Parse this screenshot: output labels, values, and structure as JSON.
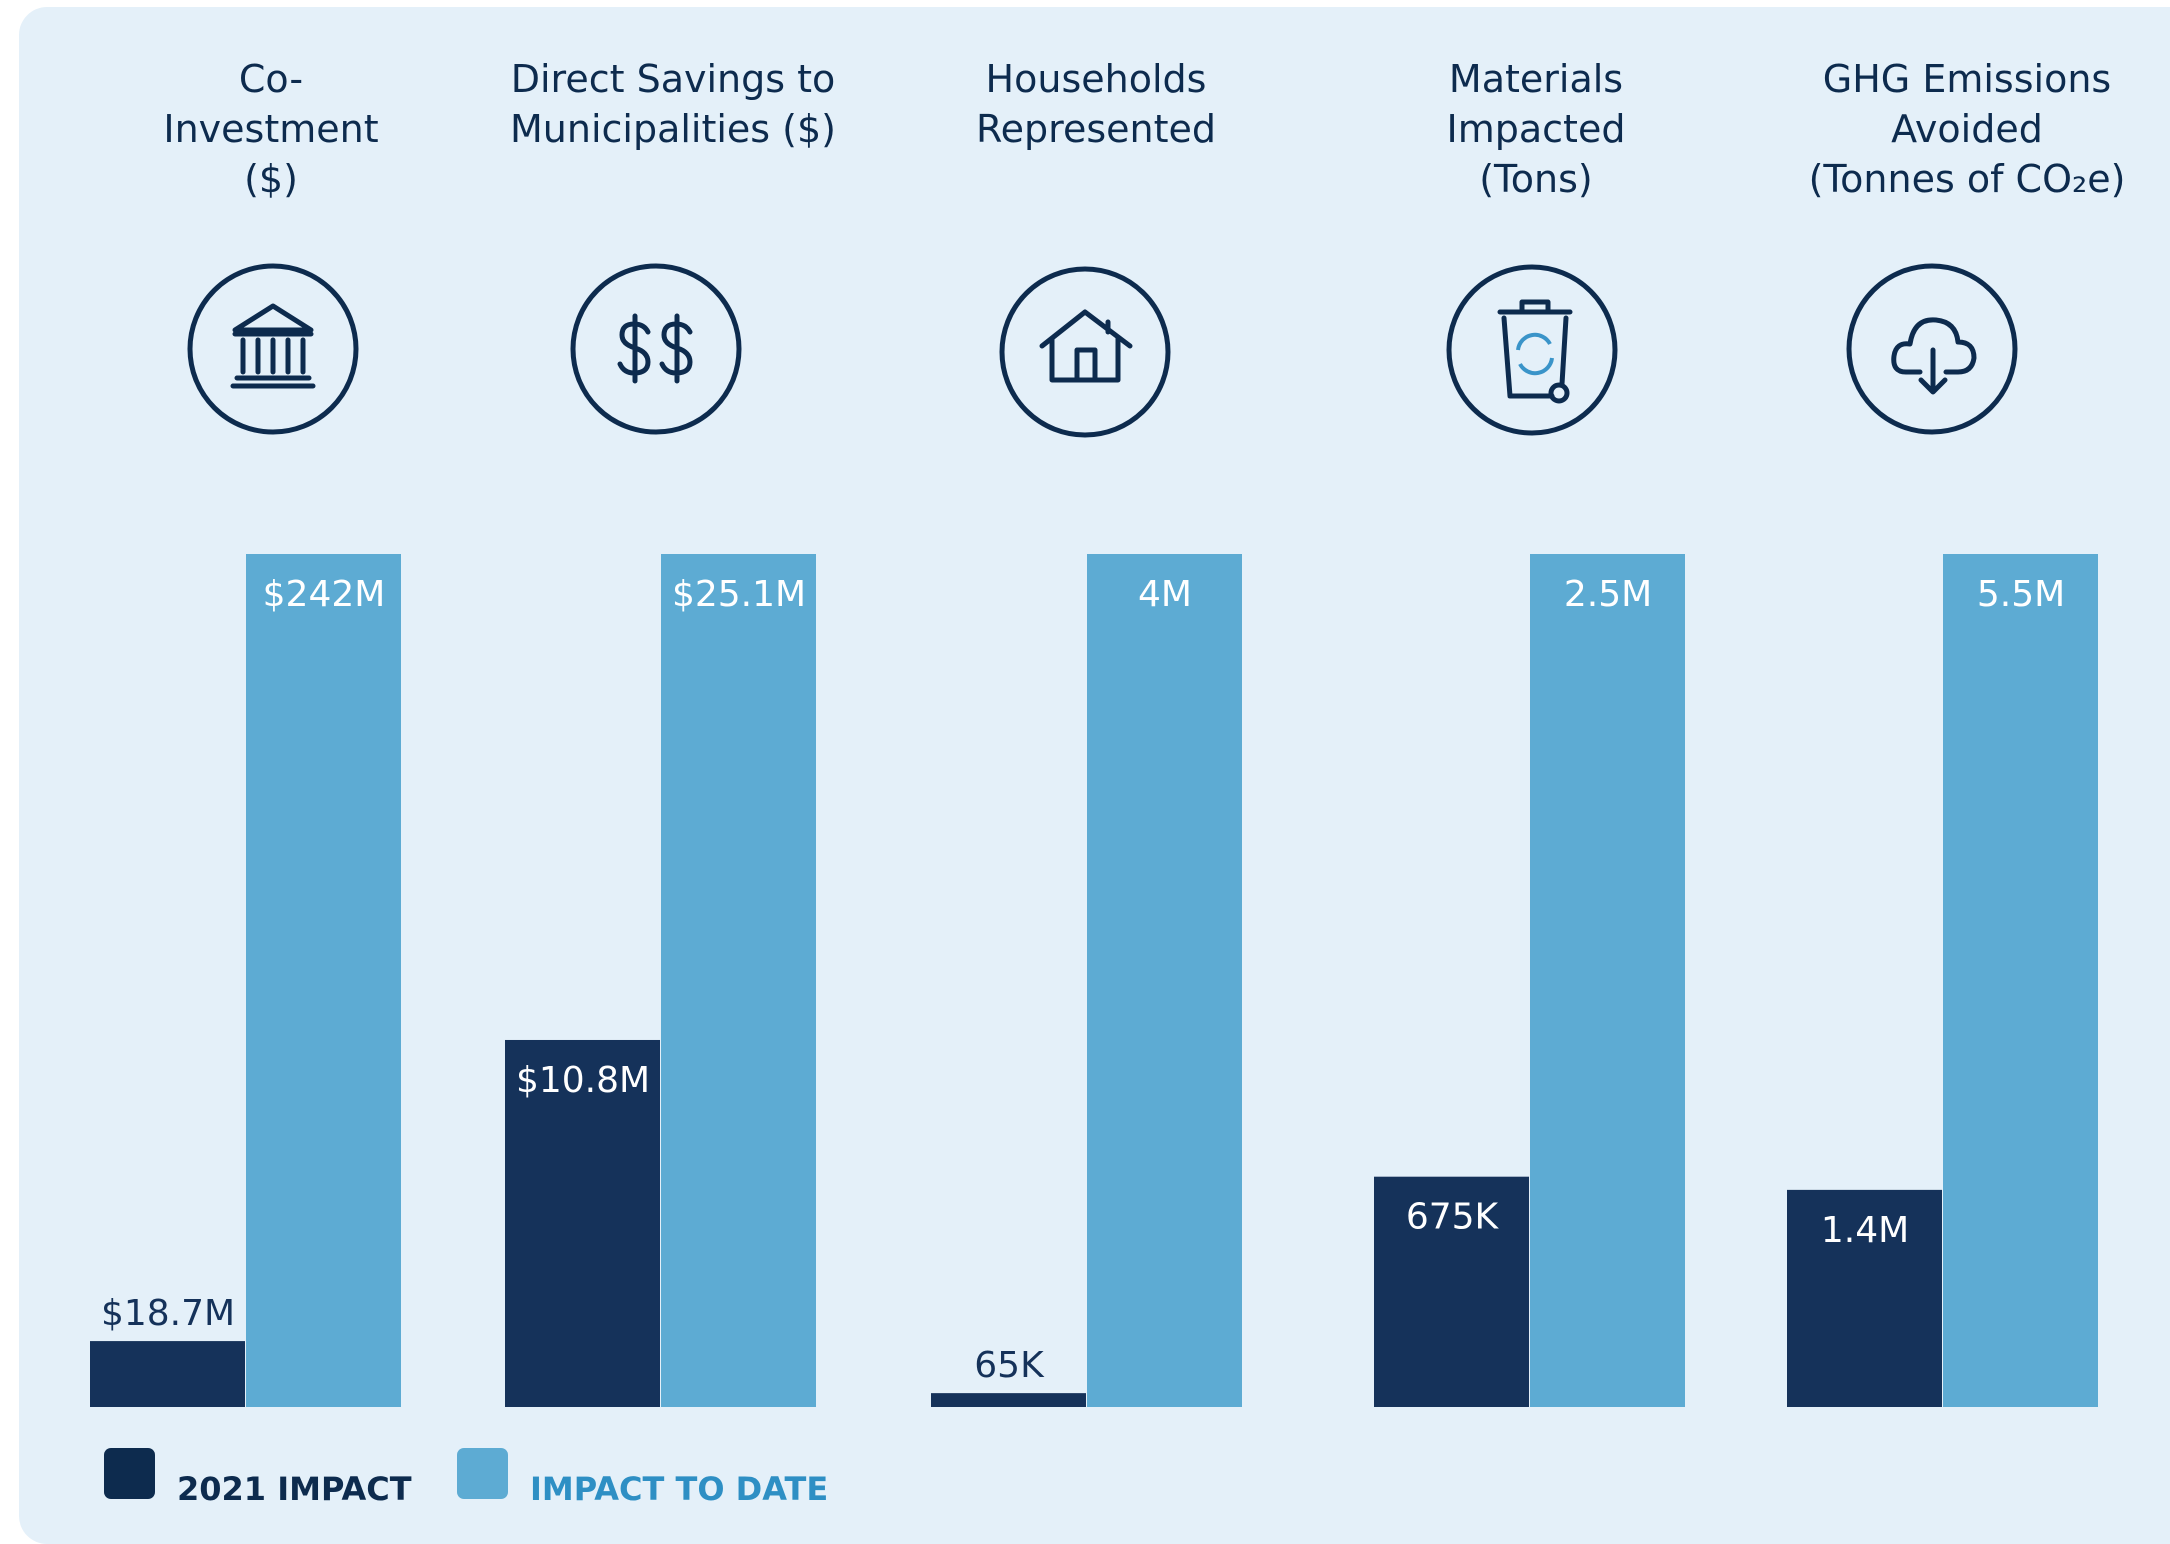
{
  "chart_data": {
    "type": "bar",
    "categories": [
      [
        "Co-",
        "Investment",
        "($)"
      ],
      [
        "Direct Savings to",
        "Municipalities ($)"
      ],
      [
        "Households",
        "Represented"
      ],
      [
        "Materials",
        "Impacted",
        "(Tons)"
      ],
      [
        "GHG Emissions",
        "Avoided",
        "(Tonnes of CO₂e)"
      ]
    ],
    "series": [
      {
        "name": "2021 IMPACT",
        "color": "#15325a",
        "values": [
          18700000,
          10800000,
          65000,
          675000,
          1400000
        ],
        "value_labels": [
          "$18.7M",
          "$10.8M",
          "65K",
          "675K",
          "1.4M"
        ]
      },
      {
        "name": "IMPACT TO DATE",
        "color": "#5dabd3",
        "values": [
          242000000,
          25100000,
          4000000,
          2500000,
          5500000
        ],
        "value_labels": [
          "$242M",
          "$25.1M",
          "4M",
          "2.5M",
          "5.5M"
        ]
      }
    ]
  }
}
